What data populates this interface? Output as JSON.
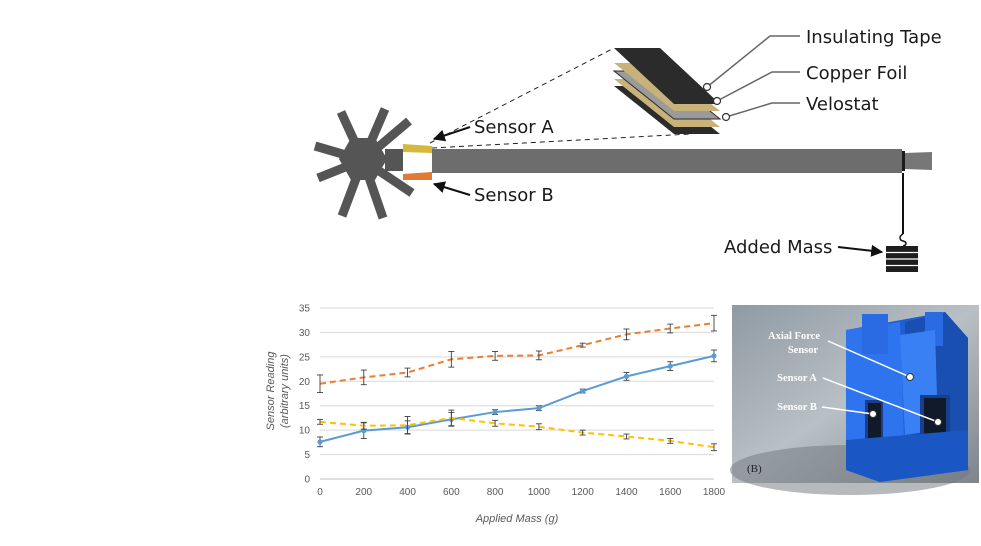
{
  "diagram": {
    "labels": {
      "insulating_tape": "Insulating Tape",
      "copper_foil": "Copper Foil",
      "velostat": "Velostat",
      "sensor_a": "Sensor A",
      "sensor_b": "Sensor B",
      "added_mass": "Added Mass"
    },
    "colors": {
      "body": "#555555",
      "beam": "#6d6d6d",
      "sensor_a": "#d4b93c",
      "sensor_b": "#e07a36",
      "tape": "#2b2b2b",
      "copper": "#c9b27a",
      "velostat": "#9a9a9a"
    }
  },
  "chart_data": {
    "type": "line",
    "title": "",
    "xlabel": "Applied Mass (g)",
    "ylabel": "Sensor Reading",
    "ylabel2": "(arbitrary units)",
    "xlim": [
      0,
      1800
    ],
    "ylim": [
      0,
      35
    ],
    "x": [
      0,
      200,
      400,
      600,
      800,
      1000,
      1200,
      1400,
      1600,
      1800
    ],
    "x_ticks": [
      "0",
      "200",
      "400",
      "600",
      "800",
      "1000",
      "1200",
      "1400",
      "1600",
      "1800"
    ],
    "y_ticks": [
      "0",
      "5",
      "10",
      "15",
      "20",
      "25",
      "30",
      "35"
    ],
    "grid": true,
    "series": [
      {
        "color": "#ed7d31",
        "dash": true,
        "values": [
          19.5,
          20.8,
          21.8,
          24.5,
          25.2,
          25.3,
          27.4,
          29.6,
          30.8,
          31.9
        ],
        "errors": [
          1.8,
          1.5,
          0.9,
          1.6,
          0.9,
          0.9,
          0.4,
          1.1,
          0.9,
          1.6
        ]
      },
      {
        "color": "#5b9bd5",
        "dash": false,
        "values": [
          7.6,
          9.9,
          10.6,
          12.2,
          13.7,
          14.5,
          18.0,
          21.0,
          23.1,
          25.2
        ],
        "errors": [
          1.0,
          1.6,
          1.3,
          1.4,
          0.5,
          0.5,
          0.4,
          0.8,
          0.9,
          1.2
        ]
      },
      {
        "color": "#ffc000",
        "dash": true,
        "values": [
          11.7,
          10.9,
          11.0,
          12.5,
          11.4,
          10.7,
          9.5,
          8.7,
          7.8,
          6.5
        ],
        "errors": [
          0.5,
          0.7,
          1.8,
          1.6,
          0.6,
          0.6,
          0.5,
          0.5,
          0.5,
          0.7
        ]
      }
    ]
  },
  "photo": {
    "labels": {
      "axial_line1": "Axial Force",
      "axial_line2": "Sensor",
      "sensor_a": "Sensor A",
      "sensor_b": "Sensor B",
      "panel_tag": "(B)"
    }
  }
}
